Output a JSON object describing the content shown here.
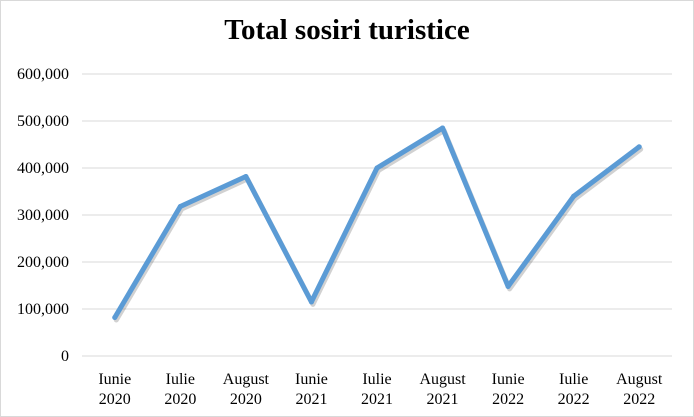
{
  "chart_data": {
    "type": "line",
    "title": "Total sosiri turistice",
    "categories": [
      [
        "Iunie",
        "2020"
      ],
      [
        "Iulie",
        "2020"
      ],
      [
        "August",
        "2020"
      ],
      [
        "Iunie",
        "2021"
      ],
      [
        "Iulie",
        "2021"
      ],
      [
        "August",
        "2021"
      ],
      [
        "Iunie",
        "2022"
      ],
      [
        "Iulie",
        "2022"
      ],
      [
        "August",
        "2022"
      ]
    ],
    "series": [
      {
        "values": [
          82000,
          318000,
          382000,
          115000,
          400000,
          485000,
          148000,
          340000,
          445000
        ]
      }
    ],
    "yticks": [
      "0",
      "100,000",
      "200,000",
      "300,000",
      "400,000",
      "500,000",
      "600,000"
    ],
    "ylim": [
      0,
      600000
    ],
    "grid": true,
    "line_color": "#5b9bd5",
    "grid_color": "#d9d9d9"
  }
}
